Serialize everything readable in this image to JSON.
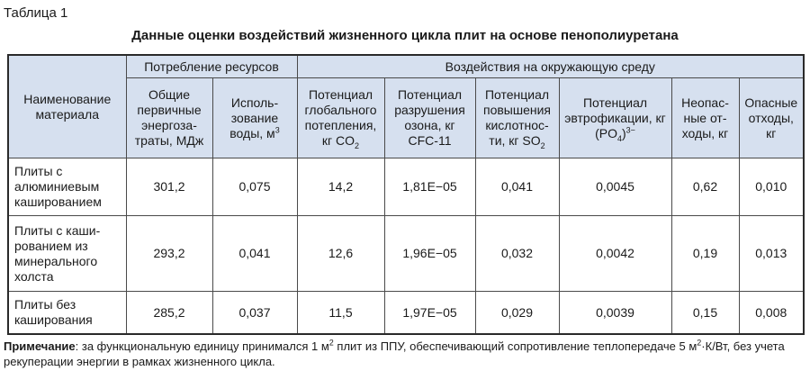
{
  "table_label": "Таблица 1",
  "caption": "Данные оценки воздействий жизненного цикла плит на основе пенополиуретана",
  "headers": {
    "name_col": "Наименование материала",
    "group_resources": "Потребление ресурсов",
    "group_environment": "Воздействия на окружающую среду",
    "energy": "Общие первичные энергоза-траты, МДж",
    "water": "Исполь-зование воды, м",
    "water_sup": "3",
    "gwp": "Потенциал глобального потепления, кг CO",
    "gwp_sub": "2",
    "odp": "Потенциал разрушения озона, кг CFC-11",
    "ap": "Потенциал повышения кислотнос-ти, кг SO",
    "ap_sub": "2",
    "ep": "Потенциал эвтрофикации, кг (PO",
    "ep_sub": "4",
    "ep_close": ")",
    "ep_sup": "3−",
    "nonhaz": "Неопас-ные от-ходы, кг",
    "haz": "Опасные отходы, кг"
  },
  "rows": [
    {
      "name": "Плиты с алюминиевым кашированием",
      "energy": "301,2",
      "water": "0,075",
      "gwp": "14,2",
      "odp": "1,81E−05",
      "ap": "0,041",
      "ep": "0,0045",
      "nonhaz": "0,62",
      "haz": "0,010"
    },
    {
      "name": "Плиты с каши-рованием из минерального холста",
      "energy": "293,2",
      "water": "0,041",
      "gwp": "12,6",
      "odp": "1,96E−05",
      "ap": "0,032",
      "ep": "0,0042",
      "nonhaz": "0,19",
      "haz": "0,013"
    },
    {
      "name": "Плиты без кaширования",
      "energy": "285,2",
      "water": "0,037",
      "gwp": "11,5",
      "odp": "1,97E−05",
      "ap": "0,029",
      "ep": "0,0039",
      "nonhaz": "0,15",
      "haz": "0,008"
    }
  ],
  "note": {
    "label": "Примечание",
    "text_1": ": за функциональную единицу принимался 1 м",
    "sup_1": "2",
    "text_2": " плит из ППУ, обеспечивающий сопротивление теплопередаче 5 м",
    "sup_2": "2",
    "text_3": "·К/Вт, без учета рекуперации энергии в рамках жизненного цикла."
  }
}
